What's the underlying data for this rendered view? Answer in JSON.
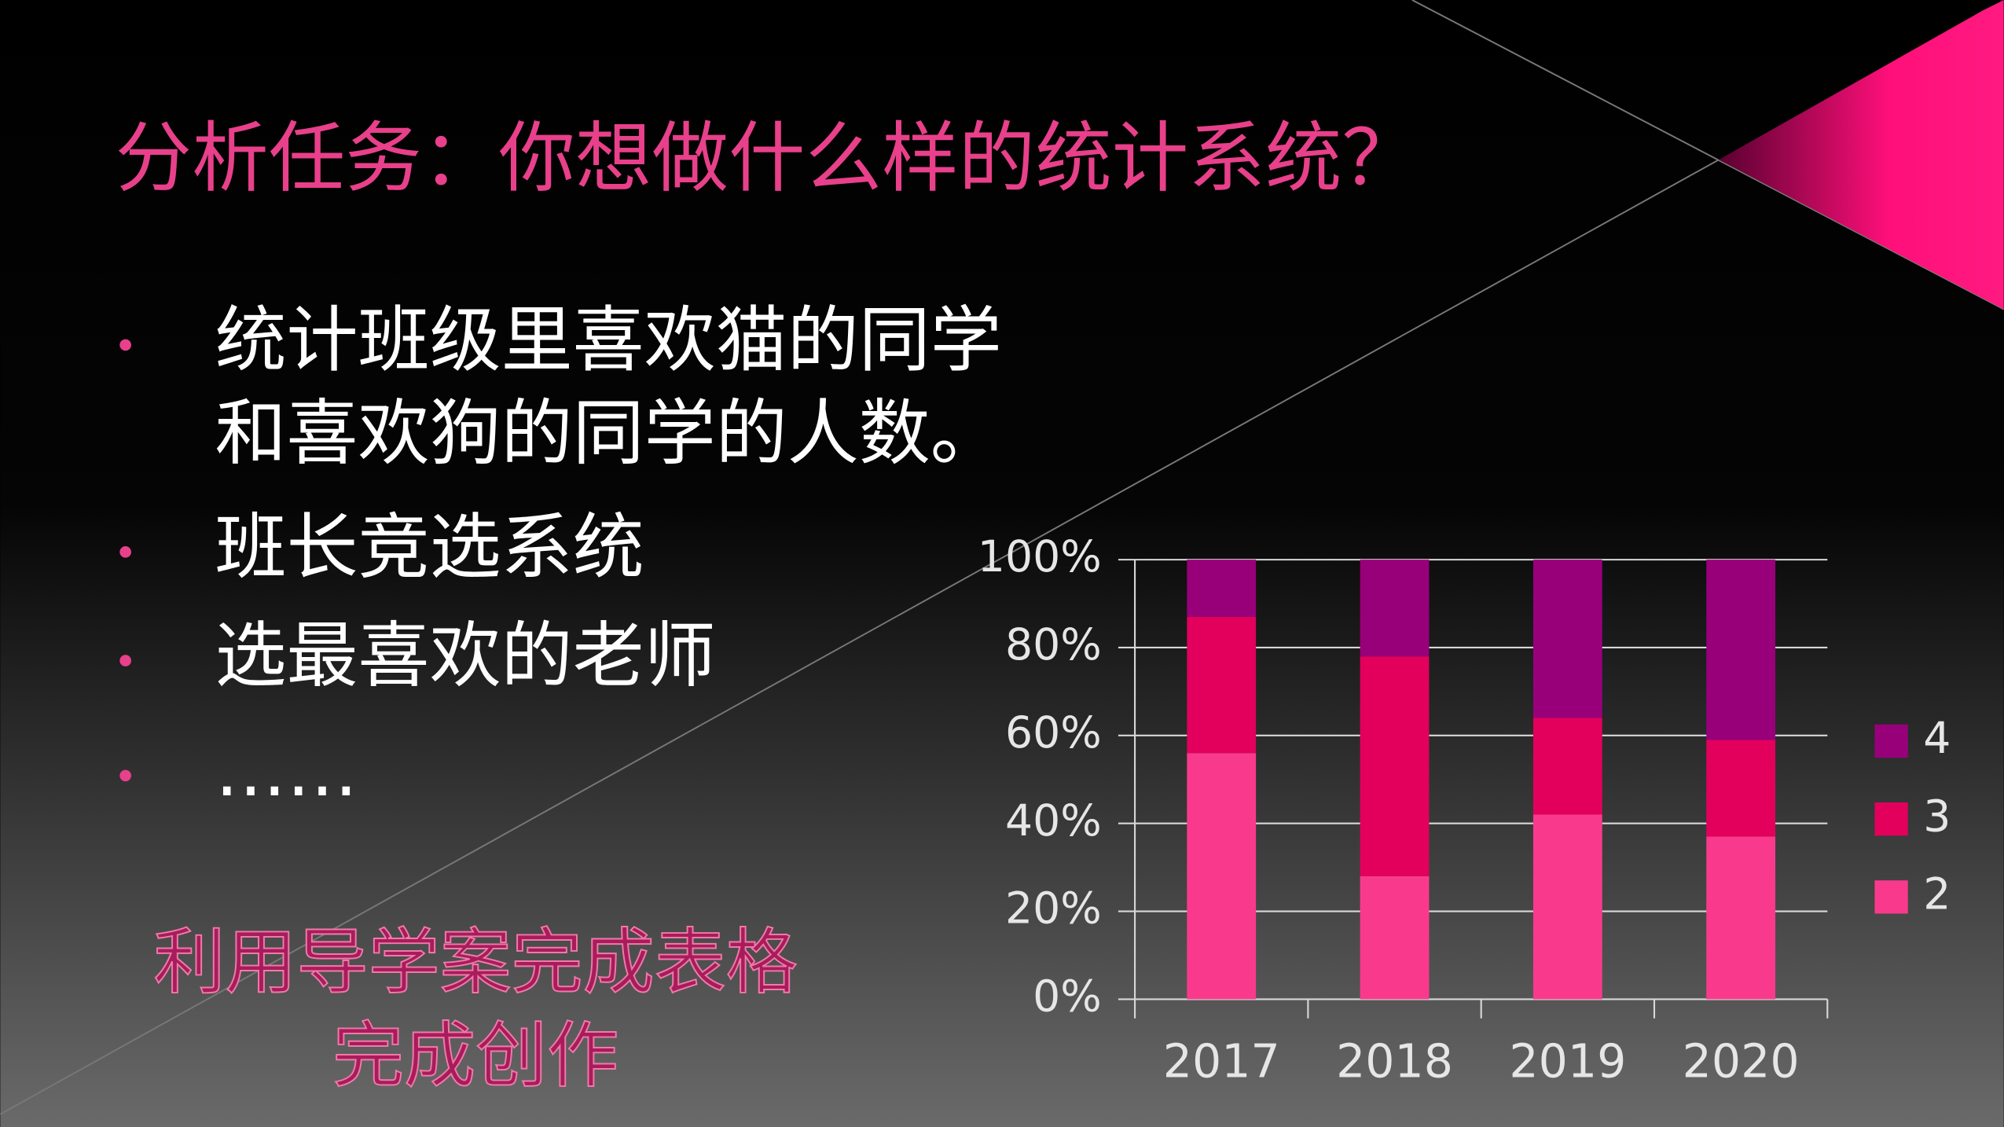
{
  "title": "分析任务：你想做什么样的统计系统？",
  "bullets": [
    [
      "统计班级里喜欢猫的同学",
      "和喜欢狗的同学的人数。"
    ],
    [
      "班长竞选系统"
    ],
    [
      "选最喜欢的老师"
    ],
    [
      "……"
    ]
  ],
  "notes": [
    "利用导学案完成表格",
    "完成创作"
  ],
  "chart_data": {
    "type": "bar",
    "stacked": true,
    "categories": [
      "2017",
      "2018",
      "2019",
      "2020"
    ],
    "series": [
      {
        "name": "2",
        "color": "#f93a8c",
        "values": [
          56,
          28,
          42,
          37
        ]
      },
      {
        "name": "3",
        "color": "#e2005c",
        "values": [
          31,
          50,
          22,
          22
        ]
      },
      {
        "name": "4",
        "color": "#98007a",
        "values": [
          13,
          22,
          36,
          41
        ]
      }
    ],
    "ylim": [
      0,
      100
    ],
    "yticks": [
      {
        "value": 0,
        "label": "0%"
      },
      {
        "value": 20,
        "label": "20%"
      },
      {
        "value": 40,
        "label": "40%"
      },
      {
        "value": 60,
        "label": "60%"
      },
      {
        "value": 80,
        "label": "80%"
      },
      {
        "value": 100,
        "label": "100%"
      }
    ],
    "grid": true,
    "legend": "right"
  }
}
